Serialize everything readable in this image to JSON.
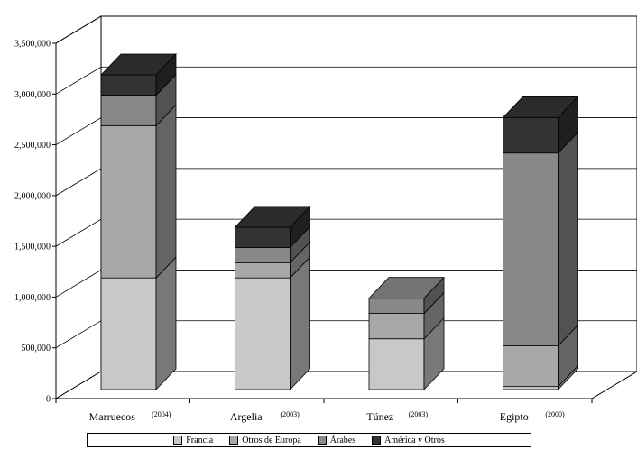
{
  "chart_data": {
    "type": "bar",
    "stacked": true,
    "three_d": true,
    "categories": [
      "Marruecos",
      "Argelia",
      "Túnez",
      "Egipto"
    ],
    "category_notes": [
      "(2004)",
      "(2003)",
      "(2003)",
      "(2000)"
    ],
    "series": [
      {
        "name": "Francia",
        "color": "#c8c8c8",
        "values": [
          1100000,
          1100000,
          500000,
          30000
        ]
      },
      {
        "name": "Otros de Europa",
        "color": "#a8a8a8",
        "values": [
          1500000,
          150000,
          250000,
          400000
        ]
      },
      {
        "name": "Árabes",
        "color": "#888888",
        "values": [
          300000,
          150000,
          150000,
          1900000
        ]
      },
      {
        "name": "América y Otros",
        "color": "#333333",
        "values": [
          200000,
          200000,
          0,
          350000
        ]
      }
    ],
    "yticks": [
      "0",
      "500,000",
      "1,000,000",
      "1,500,000",
      "2,000,000",
      "2,500,000",
      "3,000,000",
      "3,500,000"
    ],
    "ylim": [
      0,
      3500000
    ],
    "grid": true,
    "legend_position": "bottom"
  }
}
